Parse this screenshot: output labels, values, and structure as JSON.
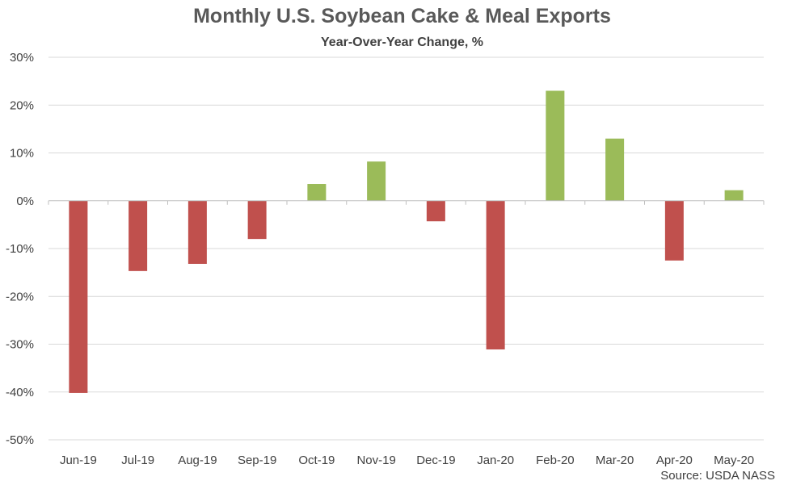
{
  "chart_data": {
    "type": "bar",
    "title": "Monthly U.S. Soybean Cake & Meal Exports",
    "subtitle": "Year-Over-Year Change, %",
    "source": "Source: USDA NASS",
    "categories": [
      "Jun-19",
      "Jul-19",
      "Aug-19",
      "Sep-19",
      "Oct-19",
      "Nov-19",
      "Dec-19",
      "Jan-20",
      "Feb-20",
      "Mar-20",
      "Apr-20",
      "May-20"
    ],
    "values": [
      -40.2,
      -14.7,
      -13.2,
      -8.0,
      3.5,
      8.2,
      -4.3,
      -31.1,
      23.0,
      13.0,
      -12.5,
      2.2
    ],
    "ylim": [
      -50,
      30
    ],
    "yticks": [
      30,
      20,
      10,
      0,
      -10,
      -20,
      -30,
      -40,
      -50
    ],
    "ytick_labels": [
      "30%",
      "20%",
      "10%",
      "0%",
      "-10%",
      "-20%",
      "-30%",
      "-40%",
      "-50%"
    ],
    "grid": true,
    "colors": {
      "positive": "#9bbb59",
      "negative": "#c0504d",
      "grid": "#d9d9d9",
      "axis": "#bfbfbf"
    }
  }
}
